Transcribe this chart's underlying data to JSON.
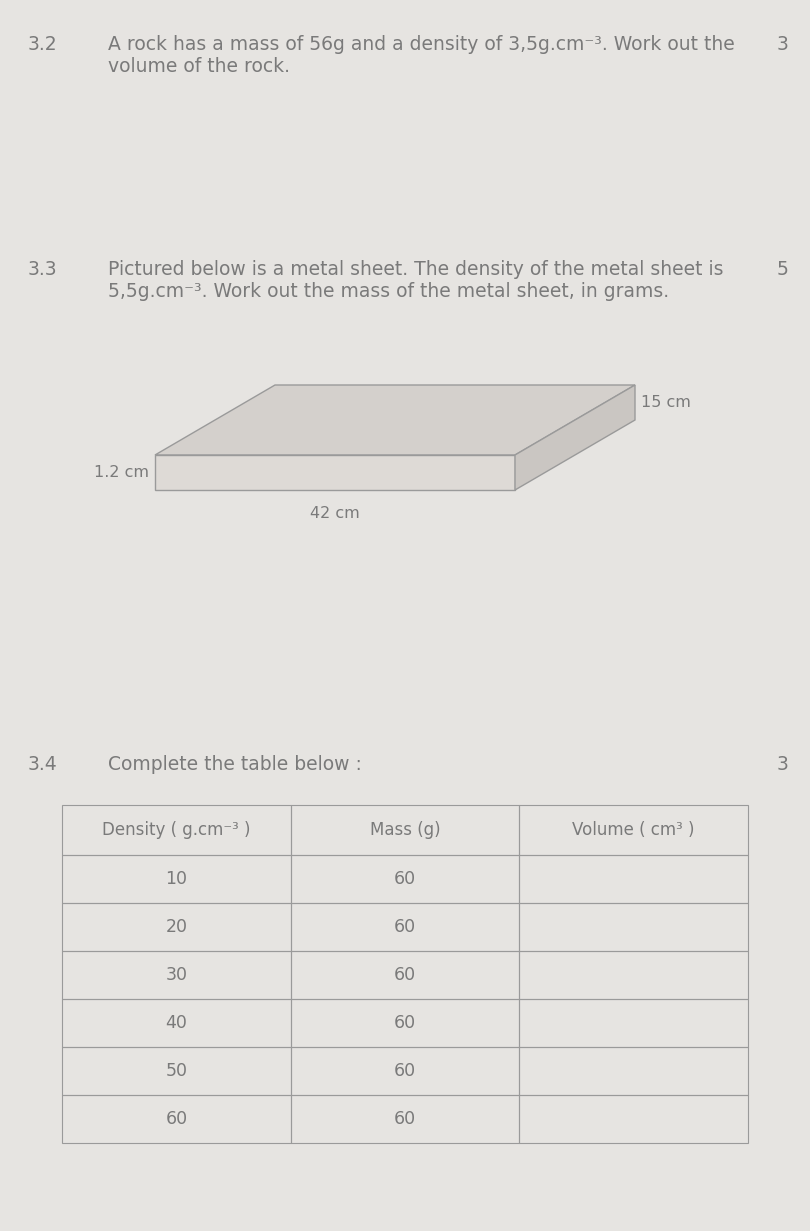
{
  "bg_color": "#e6e4e1",
  "text_color": "#7a7a7a",
  "section_32_number": "3.2",
  "section_32_text_line1": "A rock has a mass of 56g and a density of 3,5g.cm⁻³. Work out the",
  "section_32_text_line2": "volume of the rock.",
  "section_32_marks": "3",
  "section_33_number": "3.3",
  "section_33_text_line1": "Pictured below is a metal sheet. The density of the metal sheet is",
  "section_33_text_line2": "5,5g.cm⁻³. Work out the mass of the metal sheet, in grams.",
  "section_33_marks": "5",
  "box_dim_height": "1.2 cm",
  "box_dim_width": "42 cm",
  "box_dim_depth": "15 cm",
  "section_34_number": "3.4",
  "section_34_text": "Complete the table below :",
  "section_34_marks": "3",
  "table_headers": [
    "Density ( g.cm⁻³ )",
    "Mass (g)",
    "Volume ( cm³ )"
  ],
  "table_density": [
    10,
    20,
    30,
    40,
    50,
    60
  ],
  "table_mass": [
    60,
    60,
    60,
    60,
    60,
    60
  ],
  "font_size_main": 13.5,
  "font_size_dim": 11.5,
  "font_size_table": 12.5,
  "font_size_table_header": 12.0
}
